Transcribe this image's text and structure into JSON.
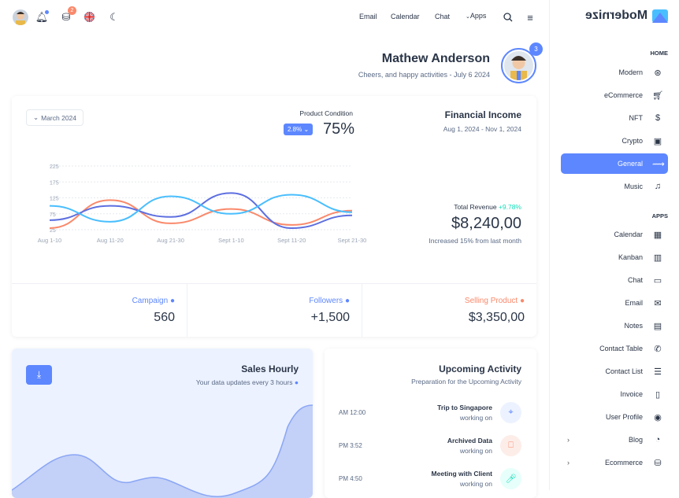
{
  "topbar": {
    "nav": [
      "Email",
      "Calendar",
      "Chat",
      "Apps"
    ],
    "cart_badge": "2",
    "icons": [
      "avatar",
      "bell-icon",
      "basket-icon",
      "uk-flag-icon",
      "moon-icon",
      "search-icon",
      "menu-icon"
    ]
  },
  "profile": {
    "name": "Mathew Anderson",
    "subtitle": "Cheers, and happy activities - July 6 2024",
    "badge": "3"
  },
  "income_card": {
    "month_select": "March 2024",
    "product_condition_label": "Product Condition",
    "change_pill": "2.8%",
    "condition_value": "75%",
    "title": "Financial Income",
    "range": "Aug 1, 2024 - Nov 1, 2024",
    "total_revenue_label": "Total Revenue",
    "total_revenue_change": "+9.78%",
    "total_revenue": "$8,240,00",
    "revenue_note": "Increased 15% from last month"
  },
  "stats": [
    {
      "label": "Campaign",
      "value": "560",
      "color": "#5d87ff"
    },
    {
      "label": "Followers",
      "value": "+1,500",
      "color": "#5d87ff"
    },
    {
      "label": "Selling Product",
      "value": "$3,350,00",
      "color": "#fa896b"
    }
  ],
  "chart_data": {
    "type": "line",
    "categories": [
      "Aug 1-10",
      "Aug 11-20",
      "Aug 21-30",
      "Sept 1-10",
      "Sept 11-20",
      "Sept 21-30"
    ],
    "yticks": [
      "25",
      "75",
      "125",
      "175",
      "225"
    ],
    "ylim": [
      25,
      225
    ],
    "grid": true,
    "series": [
      {
        "color": "#fa896b",
        "values": [
          30,
          118,
          45,
          90,
          40,
          85
        ]
      },
      {
        "color": "#5d6fe0",
        "values": [
          55,
          100,
          65,
          140,
          30,
          70
        ]
      },
      {
        "color": "#49beff",
        "values": [
          100,
          50,
          130,
          75,
          135,
          80
        ]
      }
    ]
  },
  "sales": {
    "title": "Sales Hourly",
    "subtitle": "Your data updates every 3 hours"
  },
  "activity": {
    "title": "Upcoming Activity",
    "subtitle": "Preparation for the Upcoming Activity",
    "items": [
      {
        "time": "AM 12:00",
        "title": "Trip to Singapore",
        "status": "working on",
        "icon": "map-pin-icon",
        "bg": "#ecf2ff",
        "fg": "#5d87ff"
      },
      {
        "time": "PM 3:52",
        "title": "Archived Data",
        "status": "working on",
        "icon": "bookmark-icon",
        "bg": "#fdede8",
        "fg": "#fa896b"
      },
      {
        "time": "PM 4:50",
        "title": "Meeting with Client",
        "status": "working on",
        "icon": "microphone-icon",
        "bg": "#e6fffa",
        "fg": "#13deb9"
      }
    ]
  },
  "sidebar": {
    "brand": "Modernize",
    "home_header": "HOME",
    "home": [
      {
        "label": "Modern",
        "icon": "aperture-icon"
      },
      {
        "label": "eCommerce",
        "icon": "cart-icon"
      },
      {
        "label": "NFT",
        "icon": "dollar-icon"
      },
      {
        "label": "Crypto",
        "icon": "cpu-icon"
      },
      {
        "label": "General",
        "icon": "activity-icon",
        "active": true
      },
      {
        "label": "Music",
        "icon": "playlist-icon"
      }
    ],
    "apps_header": "APPS",
    "apps": [
      {
        "label": "Calendar",
        "icon": "calendar-icon"
      },
      {
        "label": "Kanban",
        "icon": "kanban-icon"
      },
      {
        "label": "Chat",
        "icon": "message-icon"
      },
      {
        "label": "Email",
        "icon": "mail-icon"
      },
      {
        "label": "Notes",
        "icon": "notes-icon"
      },
      {
        "label": "Contact Table",
        "icon": "phone-icon"
      },
      {
        "label": "Contact List",
        "icon": "list-details-icon"
      },
      {
        "label": "Invoice",
        "icon": "file-text-icon"
      },
      {
        "label": "User Profile",
        "icon": "user-circle-icon"
      },
      {
        "label": "Blog",
        "icon": "chart-donut-icon",
        "chevron": true
      },
      {
        "label": "Ecommerce",
        "icon": "basket-icon",
        "chevron": true
      }
    ]
  }
}
